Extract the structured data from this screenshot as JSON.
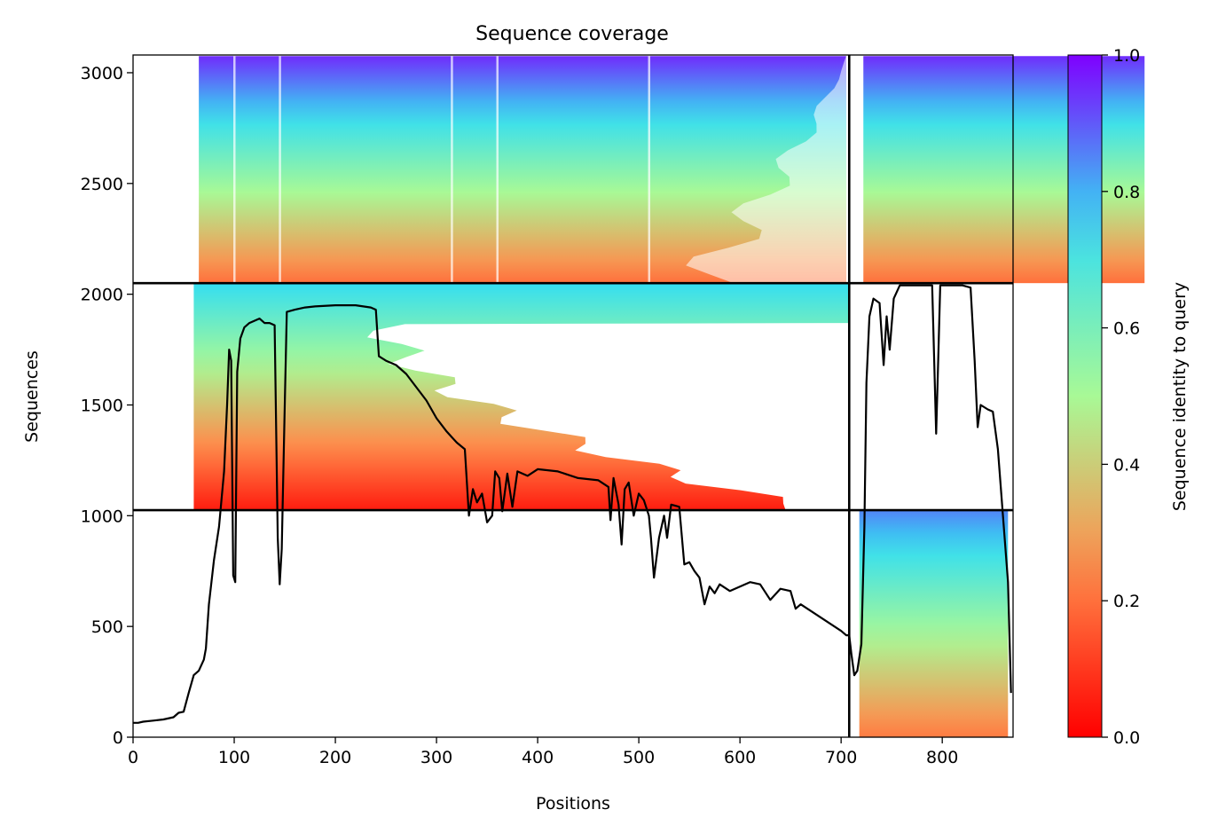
{
  "chart_data": {
    "type": "heatmap",
    "title": "Sequence coverage",
    "xlabel": "Positions",
    "ylabel": "Sequences",
    "xlim": [
      0,
      870
    ],
    "ylim": [
      0,
      3080
    ],
    "x_ticks": [
      0,
      100,
      200,
      300,
      400,
      500,
      600,
      700,
      800
    ],
    "y_ticks": [
      0,
      500,
      1000,
      1500,
      2000,
      2500,
      3000
    ],
    "colorbar": {
      "label": "Sequence identity to query",
      "range": [
        0,
        1
      ],
      "ticks": [
        "0.0",
        "0.2",
        "0.4",
        "0.6",
        "0.8",
        "1.0"
      ],
      "colormap": "rainbow_r",
      "stops": [
        "#ff0000",
        "#ff8c4b",
        "#a8f996",
        "#34def1",
        "#7f00ff"
      ]
    },
    "block_dividers": {
      "x": [
        708
      ],
      "y": [
        1025,
        2050
      ]
    },
    "coverage_line": {
      "color": "#000000",
      "points": [
        [
          0,
          65
        ],
        [
          5,
          65
        ],
        [
          10,
          70
        ],
        [
          20,
          75
        ],
        [
          30,
          80
        ],
        [
          40,
          90
        ],
        [
          45,
          110
        ],
        [
          50,
          115
        ],
        [
          55,
          200
        ],
        [
          60,
          280
        ],
        [
          65,
          300
        ],
        [
          70,
          350
        ],
        [
          72,
          400
        ],
        [
          75,
          600
        ],
        [
          80,
          800
        ],
        [
          85,
          950
        ],
        [
          90,
          1200
        ],
        [
          93,
          1500
        ],
        [
          95,
          1750
        ],
        [
          97,
          1700
        ],
        [
          99,
          730
        ],
        [
          101,
          700
        ],
        [
          103,
          1650
        ],
        [
          106,
          1800
        ],
        [
          110,
          1850
        ],
        [
          115,
          1870
        ],
        [
          120,
          1880
        ],
        [
          125,
          1890
        ],
        [
          130,
          1870
        ],
        [
          135,
          1870
        ],
        [
          140,
          1860
        ],
        [
          143,
          900
        ],
        [
          145,
          690
        ],
        [
          147,
          850
        ],
        [
          150,
          1500
        ],
        [
          152,
          1920
        ],
        [
          160,
          1930
        ],
        [
          170,
          1940
        ],
        [
          180,
          1945
        ],
        [
          200,
          1950
        ],
        [
          220,
          1950
        ],
        [
          235,
          1940
        ],
        [
          240,
          1930
        ],
        [
          243,
          1720
        ],
        [
          250,
          1700
        ],
        [
          260,
          1680
        ],
        [
          270,
          1640
        ],
        [
          280,
          1580
        ],
        [
          290,
          1520
        ],
        [
          300,
          1440
        ],
        [
          310,
          1380
        ],
        [
          320,
          1330
        ],
        [
          328,
          1300
        ],
        [
          332,
          1000
        ],
        [
          336,
          1120
        ],
        [
          340,
          1060
        ],
        [
          345,
          1100
        ],
        [
          350,
          970
        ],
        [
          355,
          1000
        ],
        [
          358,
          1200
        ],
        [
          362,
          1170
        ],
        [
          365,
          1020
        ],
        [
          370,
          1190
        ],
        [
          375,
          1040
        ],
        [
          380,
          1200
        ],
        [
          390,
          1180
        ],
        [
          400,
          1210
        ],
        [
          420,
          1200
        ],
        [
          440,
          1170
        ],
        [
          460,
          1160
        ],
        [
          470,
          1130
        ],
        [
          472,
          980
        ],
        [
          475,
          1170
        ],
        [
          480,
          1050
        ],
        [
          483,
          870
        ],
        [
          486,
          1120
        ],
        [
          490,
          1150
        ],
        [
          495,
          1000
        ],
        [
          500,
          1100
        ],
        [
          505,
          1070
        ],
        [
          510,
          1000
        ],
        [
          512,
          900
        ],
        [
          515,
          720
        ],
        [
          520,
          900
        ],
        [
          525,
          1000
        ],
        [
          528,
          900
        ],
        [
          532,
          1050
        ],
        [
          540,
          1040
        ],
        [
          545,
          780
        ],
        [
          550,
          790
        ],
        [
          555,
          750
        ],
        [
          560,
          720
        ],
        [
          565,
          600
        ],
        [
          570,
          680
        ],
        [
          575,
          650
        ],
        [
          580,
          690
        ],
        [
          590,
          660
        ],
        [
          600,
          680
        ],
        [
          610,
          700
        ],
        [
          620,
          690
        ],
        [
          630,
          620
        ],
        [
          640,
          670
        ],
        [
          650,
          660
        ],
        [
          655,
          580
        ],
        [
          660,
          600
        ],
        [
          670,
          570
        ],
        [
          680,
          540
        ],
        [
          690,
          510
        ],
        [
          700,
          480
        ],
        [
          705,
          460
        ],
        [
          708,
          460
        ],
        [
          710,
          380
        ],
        [
          713,
          280
        ],
        [
          716,
          300
        ],
        [
          720,
          420
        ],
        [
          723,
          950
        ],
        [
          725,
          1600
        ],
        [
          728,
          1900
        ],
        [
          732,
          1980
        ],
        [
          738,
          1960
        ],
        [
          742,
          1680
        ],
        [
          745,
          1900
        ],
        [
          748,
          1750
        ],
        [
          752,
          1980
        ],
        [
          758,
          2040
        ],
        [
          770,
          2040
        ],
        [
          790,
          2040
        ],
        [
          792,
          1700
        ],
        [
          794,
          1370
        ],
        [
          796,
          1700
        ],
        [
          798,
          2040
        ],
        [
          820,
          2040
        ],
        [
          828,
          2030
        ],
        [
          832,
          1700
        ],
        [
          835,
          1400
        ],
        [
          838,
          1500
        ],
        [
          845,
          1480
        ],
        [
          850,
          1470
        ],
        [
          855,
          1300
        ],
        [
          860,
          1000
        ],
        [
          865,
          700
        ],
        [
          868,
          200
        ]
      ]
    }
  }
}
